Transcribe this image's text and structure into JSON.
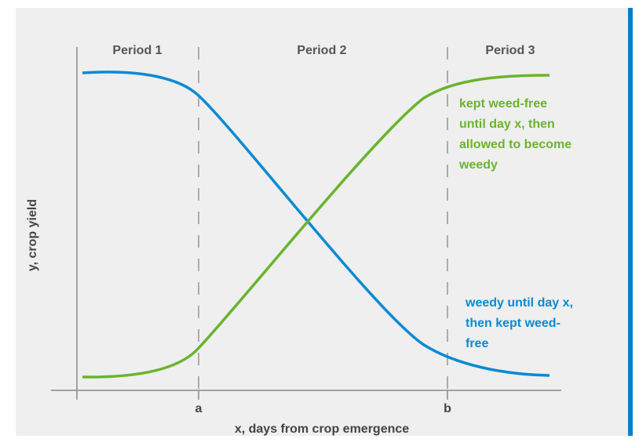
{
  "periods": [
    "Period 1",
    "Period 2",
    "Period 3"
  ],
  "x_axis": {
    "label": "x, days from crop emergence",
    "marks": [
      "a",
      "b"
    ]
  },
  "y_axis": {
    "label": "y, crop yield"
  },
  "curves": [
    {
      "name": "green",
      "lines": [
        "kept weed-free",
        "until day x, then",
        "allowed to become",
        "weedy"
      ]
    },
    {
      "name": "blue",
      "lines": [
        "weedy until day x,",
        "then kept weed-",
        "free"
      ]
    }
  ]
}
